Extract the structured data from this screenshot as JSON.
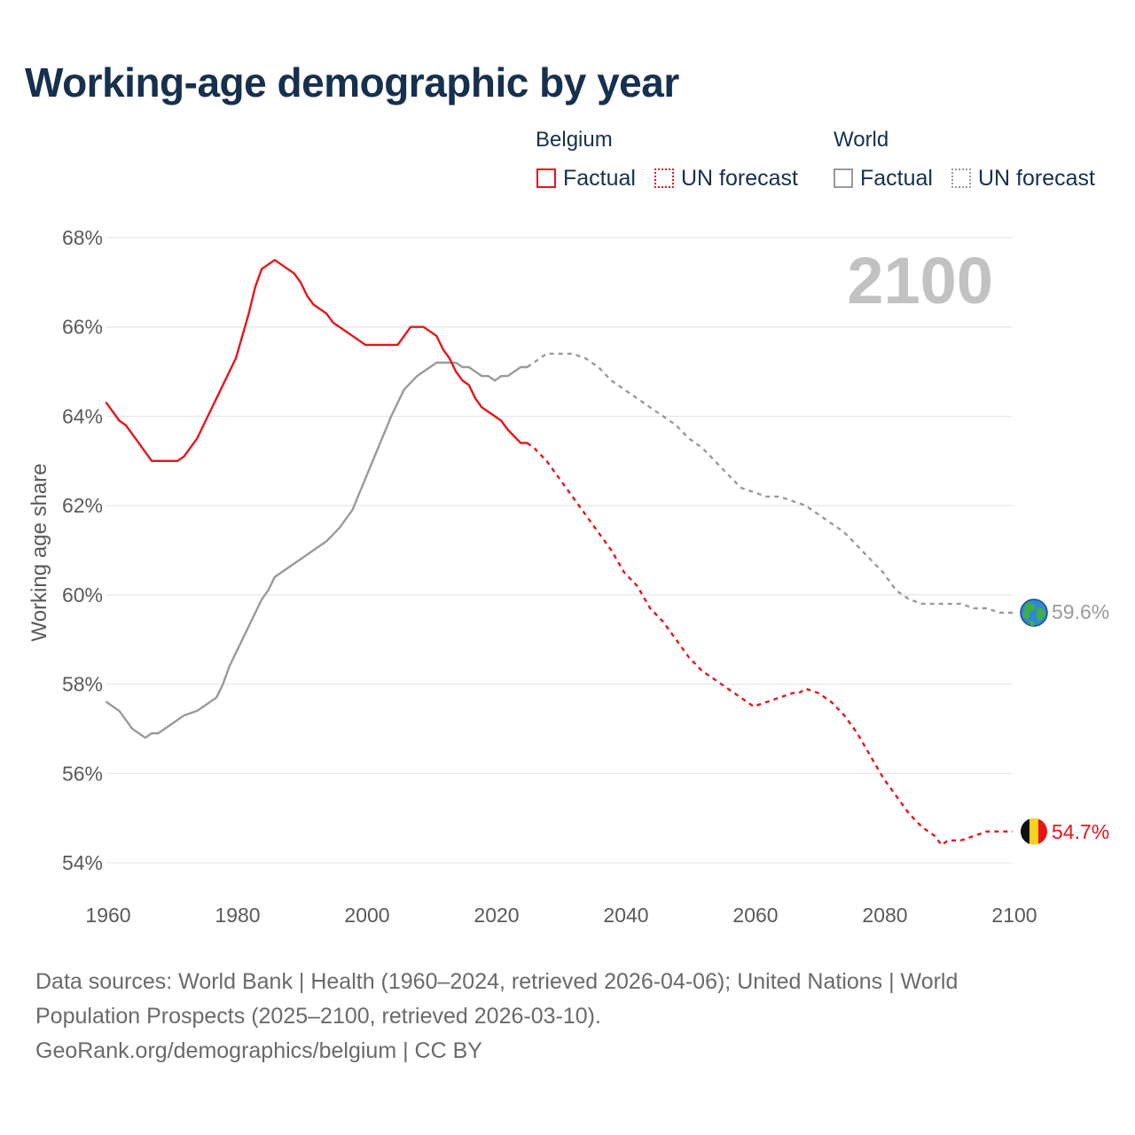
{
  "title": "Working-age demographic by year",
  "legend": {
    "belgium_title": "Belgium",
    "world_title": "World",
    "factual": "Factual",
    "forecast": "UN forecast"
  },
  "year_label": "2100",
  "end_labels": {
    "belgium": "54.7%",
    "world": "59.6%"
  },
  "footer": {
    "line1": "Data sources: World Bank | Health (1960–2024, retrieved 2026-04-06); United Nations | World",
    "line2": "Population Prospects (2025–2100, retrieved 2026-03-10).",
    "line3": "GeoRank.org/demographics/belgium | CC BY"
  },
  "colors": {
    "belgium": "#e8141c",
    "world": "#9a9a9a",
    "title": "#16304f",
    "grid": "#e6e6e6",
    "tick": "#5a5a5a",
    "year_label": "#c2c2c2"
  },
  "icons": {
    "world_marker": "globe-icon",
    "belgium_marker": "belgium-flag-icon"
  },
  "chart_data": {
    "type": "line",
    "title": "Working-age demographic by year",
    "xlabel": "",
    "ylabel": "Working age share",
    "xlim": [
      1960,
      2100
    ],
    "ylim": [
      54,
      68
    ],
    "x_ticks": [
      1960,
      1980,
      2000,
      2020,
      2040,
      2060,
      2080,
      2100
    ],
    "y_ticks": [
      54,
      56,
      58,
      60,
      62,
      64,
      66,
      68
    ],
    "y_tick_labels": [
      "54%",
      "56%",
      "58%",
      "60%",
      "62%",
      "64%",
      "66%",
      "68%"
    ],
    "grid": true,
    "legend_position": "top-right",
    "series": [
      {
        "name": "Belgium Factual",
        "style": "solid",
        "x": [
          1960,
          1962,
          1963,
          1965,
          1967,
          1969,
          1971,
          1972,
          1974,
          1976,
          1978,
          1980,
          1982,
          1983,
          1984,
          1986,
          1988,
          1989,
          1990,
          1991,
          1992,
          1994,
          1995,
          1997,
          1999,
          2000,
          2005,
          2007,
          2009,
          2011,
          2012,
          2013,
          2014,
          2015,
          2016,
          2017,
          2018,
          2020,
          2021,
          2022,
          2024,
          2025
        ],
        "values": [
          64.3,
          63.9,
          63.8,
          63.4,
          63.0,
          63.0,
          63.0,
          63.1,
          63.5,
          64.1,
          64.7,
          65.3,
          66.3,
          66.9,
          67.3,
          67.5,
          67.3,
          67.2,
          67.0,
          66.7,
          66.5,
          66.3,
          66.1,
          65.9,
          65.7,
          65.6,
          65.6,
          66.0,
          66.0,
          65.8,
          65.5,
          65.3,
          65.0,
          64.8,
          64.7,
          64.4,
          64.2,
          64.0,
          63.9,
          63.7,
          63.4,
          63.4
        ]
      },
      {
        "name": "Belgium UN forecast",
        "style": "dashed",
        "x": [
          2025,
          2026,
          2028,
          2030,
          2032,
          2034,
          2036,
          2038,
          2040,
          2042,
          2044,
          2046,
          2048,
          2050,
          2052,
          2054,
          2056,
          2058,
          2059,
          2060,
          2062,
          2064,
          2066,
          2067,
          2068,
          2070,
          2072,
          2074,
          2076,
          2078,
          2080,
          2082,
          2084,
          2086,
          2088,
          2089,
          2090,
          2092,
          2094,
          2096,
          2098,
          2100
        ],
        "values": [
          63.4,
          63.3,
          63.0,
          62.6,
          62.2,
          61.8,
          61.4,
          61.0,
          60.5,
          60.2,
          59.7,
          59.4,
          59.0,
          58.6,
          58.3,
          58.1,
          57.9,
          57.7,
          57.6,
          57.5,
          57.6,
          57.7,
          57.8,
          57.8,
          57.9,
          57.8,
          57.6,
          57.3,
          56.9,
          56.4,
          55.9,
          55.5,
          55.1,
          54.8,
          54.6,
          54.4,
          54.5,
          54.5,
          54.6,
          54.7,
          54.7,
          54.7
        ]
      },
      {
        "name": "World Factual",
        "style": "solid",
        "x": [
          1960,
          1962,
          1964,
          1966,
          1967,
          1968,
          1970,
          1972,
          1974,
          1975,
          1977,
          1978,
          1979,
          1980,
          1982,
          1984,
          1985,
          1986,
          1987,
          1989,
          1990,
          1992,
          1994,
          1996,
          1998,
          2000,
          2002,
          2004,
          2006,
          2008,
          2010,
          2011,
          2012,
          2013,
          2014,
          2015,
          2016,
          2017,
          2018,
          2019,
          2020,
          2021,
          2022,
          2024,
          2025
        ],
        "values": [
          57.6,
          57.4,
          57.0,
          56.8,
          56.9,
          56.9,
          57.1,
          57.3,
          57.4,
          57.5,
          57.7,
          58.0,
          58.4,
          58.7,
          59.3,
          59.9,
          60.1,
          60.4,
          60.5,
          60.7,
          60.8,
          61.0,
          61.2,
          61.5,
          61.9,
          62.6,
          63.3,
          64.0,
          64.6,
          64.9,
          65.1,
          65.2,
          65.2,
          65.2,
          65.2,
          65.1,
          65.1,
          65.0,
          64.9,
          64.9,
          64.8,
          64.9,
          64.9,
          65.1,
          65.1
        ]
      },
      {
        "name": "World UN forecast",
        "style": "dashed",
        "x": [
          2025,
          2026,
          2028,
          2030,
          2032,
          2034,
          2036,
          2038,
          2040,
          2042,
          2044,
          2046,
          2048,
          2050,
          2052,
          2054,
          2056,
          2058,
          2060,
          2062,
          2064,
          2066,
          2068,
          2070,
          2072,
          2074,
          2076,
          2078,
          2080,
          2082,
          2084,
          2086,
          2088,
          2090,
          2092,
          2094,
          2096,
          2098,
          2100
        ],
        "values": [
          65.1,
          65.2,
          65.4,
          65.4,
          65.4,
          65.3,
          65.1,
          64.8,
          64.6,
          64.4,
          64.2,
          64.0,
          63.8,
          63.5,
          63.3,
          63.0,
          62.7,
          62.4,
          62.3,
          62.2,
          62.2,
          62.1,
          62.0,
          61.8,
          61.6,
          61.4,
          61.1,
          60.8,
          60.5,
          60.1,
          59.9,
          59.8,
          59.8,
          59.8,
          59.8,
          59.7,
          59.7,
          59.6,
          59.6
        ]
      }
    ]
  }
}
